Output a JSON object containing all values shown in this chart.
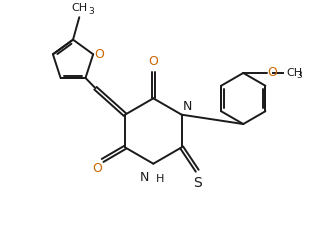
{
  "bg_color": "#ffffff",
  "line_color": "#1a1a1a",
  "o_color": "#cc6600",
  "line_width": 1.4,
  "dbo": 0.055,
  "figsize": [
    3.16,
    2.36
  ],
  "dpi": 100,
  "xlim": [
    0,
    10
  ],
  "ylim": [
    0,
    7.5
  ]
}
